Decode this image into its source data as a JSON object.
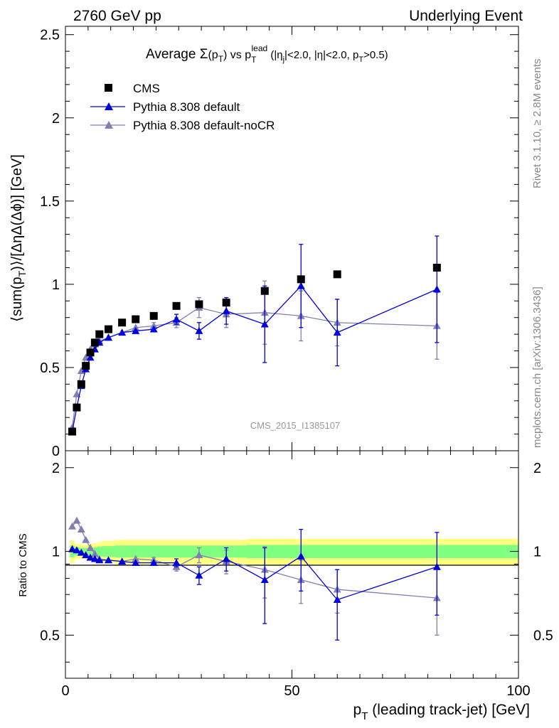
{
  "header": {
    "left": "2760 GeV pp",
    "right": "Underlying Event"
  },
  "side_text": {
    "rivet": "Rivet 3.1.10, ≥ 2.8M events",
    "mcplots": "mcplots.cern.ch [arXiv:1306.3436]"
  },
  "watermark": "CMS_2015_I1385107",
  "colors": {
    "cms": "#000000",
    "default": "#0000dd",
    "nocr": "#8080b0",
    "band_outer": "#ffff80",
    "band_inner": "#80ff80"
  },
  "chart_data": [
    {
      "type": "scatter",
      "title": {
        "pre": "Average ",
        "sigma": "Σ",
        "arg_open": "(p",
        "arg_sub": "T",
        "arg_close": ")",
        "vs": " vs p",
        "vs_sub": "T",
        "vs_sup": "lead",
        "cuts_a": " (|η",
        "cuts_a_sub": "j",
        "cuts_b": "|<2.0, |η|<2.0, p",
        "cuts_b_sub": "T",
        "cuts_c": ">0.5)"
      },
      "ylabel": {
        "a": "⟨sum(p",
        "sub": "T",
        "b": ")⟩/[ΔηΔ(Δϕ)] [GeV]"
      },
      "xlim": [
        0,
        100
      ],
      "ylim": [
        0,
        2.55
      ],
      "yticks": [
        "0",
        "0.5",
        "1",
        "1.5",
        "2",
        "2.5"
      ],
      "legend_position": "top-left",
      "series": [
        {
          "name": "CMS",
          "marker": "square",
          "x": [
            1.5,
            2.5,
            3.5,
            4.5,
            5.5,
            6.5,
            7.5,
            9.5,
            12.5,
            15.5,
            19.5,
            24.5,
            29.5,
            35.5,
            44.0,
            52.0,
            60.0,
            82.0
          ],
          "y": [
            0.115,
            0.26,
            0.4,
            0.51,
            0.59,
            0.65,
            0.7,
            0.73,
            0.77,
            0.79,
            0.81,
            0.87,
            0.88,
            0.89,
            0.96,
            1.03,
            1.06,
            1.1
          ]
        },
        {
          "name": "Pythia 8.308 default",
          "marker": "triangle",
          "x": [
            1.5,
            2.5,
            3.5,
            4.5,
            5.5,
            6.5,
            7.5,
            9.5,
            12.5,
            15.5,
            19.5,
            24.5,
            29.5,
            35.5,
            44.0,
            52.0,
            60.0,
            82.0
          ],
          "y": [
            0.115,
            0.26,
            0.39,
            0.49,
            0.56,
            0.61,
            0.65,
            0.68,
            0.71,
            0.72,
            0.73,
            0.79,
            0.72,
            0.84,
            0.76,
            0.99,
            0.71,
            0.97
          ],
          "err": [
            0.005,
            0.005,
            0.005,
            0.005,
            0.005,
            0.01,
            0.01,
            0.01,
            0.01,
            0.01,
            0.01,
            0.03,
            0.05,
            0.08,
            0.23,
            0.25,
            0.2,
            0.32
          ]
        },
        {
          "name": "Pythia 8.308 default-noCR",
          "marker": "triangle",
          "x": [
            1.5,
            2.5,
            3.5,
            4.5,
            5.5,
            6.5,
            7.5,
            9.5,
            12.5,
            15.5,
            19.5,
            24.5,
            29.5,
            35.5,
            44.0,
            52.0,
            60.0,
            82.0
          ],
          "y": [
            0.14,
            0.34,
            0.48,
            0.56,
            0.61,
            0.64,
            0.66,
            0.68,
            0.71,
            0.74,
            0.75,
            0.77,
            0.86,
            0.82,
            0.83,
            0.81,
            0.77,
            0.75
          ],
          "err": [
            0.005,
            0.005,
            0.005,
            0.005,
            0.005,
            0.01,
            0.01,
            0.01,
            0.01,
            0.01,
            0.02,
            0.03,
            0.06,
            0.08,
            0.19,
            0.15,
            0.14,
            0.2
          ]
        }
      ]
    },
    {
      "type": "scatter",
      "title": "",
      "xlabel": {
        "a": "p",
        "sub": "T",
        "b": " (leading track-jet) [GeV]"
      },
      "ylabel": "Ratio to CMS",
      "xlim": [
        0,
        100
      ],
      "ylim": [
        0.35,
        2.3
      ],
      "xticks": [
        "0",
        "50",
        "100"
      ],
      "yticks": [
        "0.5",
        "1",
        "2"
      ],
      "reference_band": {
        "x": [
          1,
          2,
          3,
          4,
          5,
          6,
          7,
          8,
          11,
          14,
          17,
          22,
          27,
          32,
          40,
          48,
          56,
          64,
          100
        ],
        "inner": [
          0.05,
          0.035,
          0.03,
          0.03,
          0.03,
          0.035,
          0.04,
          0.045,
          0.05,
          0.05,
          0.05,
          0.05,
          0.05,
          0.05,
          0.055,
          0.055,
          0.055,
          0.055
        ],
        "outer": [
          0.095,
          0.065,
          0.06,
          0.06,
          0.065,
          0.07,
          0.08,
          0.09,
          0.1,
          0.1,
          0.1,
          0.1,
          0.1,
          0.1,
          0.11,
          0.11,
          0.11,
          0.11
        ]
      },
      "series": [
        {
          "name": "Pythia 8.308 default",
          "x": [
            1.5,
            2.5,
            3.5,
            4.5,
            5.5,
            6.5,
            7.5,
            9.5,
            12.5,
            15.5,
            19.5,
            24.5,
            29.5,
            35.5,
            44.0,
            52.0,
            60.0,
            82.0
          ],
          "y": [
            1.02,
            1.01,
            0.99,
            0.97,
            0.95,
            0.94,
            0.93,
            0.93,
            0.92,
            0.91,
            0.91,
            0.91,
            0.82,
            0.94,
            0.79,
            0.96,
            0.67,
            0.88
          ],
          "err": [
            0.01,
            0.01,
            0.01,
            0.01,
            0.01,
            0.01,
            0.01,
            0.01,
            0.01,
            0.01,
            0.01,
            0.03,
            0.06,
            0.09,
            0.24,
            0.24,
            0.19,
            0.29
          ]
        },
        {
          "name": "Pythia 8.308 default-noCR",
          "x": [
            1.5,
            2.5,
            3.5,
            4.5,
            5.5,
            6.5,
            7.5,
            9.5,
            12.5,
            15.5,
            19.5,
            24.5,
            29.5,
            35.5,
            44.0,
            52.0,
            60.0,
            82.0
          ],
          "y": [
            1.23,
            1.29,
            1.2,
            1.1,
            1.03,
            0.98,
            0.94,
            0.93,
            0.92,
            0.94,
            0.93,
            0.88,
            0.97,
            0.92,
            0.86,
            0.79,
            0.73,
            0.68
          ],
          "err": [
            0.01,
            0.01,
            0.01,
            0.01,
            0.01,
            0.01,
            0.01,
            0.01,
            0.01,
            0.01,
            0.02,
            0.03,
            0.06,
            0.09,
            0.18,
            0.14,
            0.13,
            0.18
          ]
        }
      ]
    }
  ]
}
